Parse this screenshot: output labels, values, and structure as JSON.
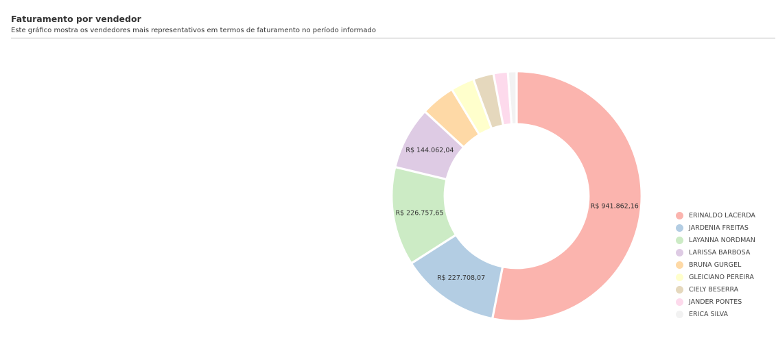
{
  "header": {
    "title": "Faturamento por vendedor",
    "subtitle": "Este gráfico mostra os vendedores mais representativos em termos de faturamento no período informado"
  },
  "chart_data": {
    "type": "pie",
    "style": "donut",
    "title": "Faturamento por vendedor",
    "subtitle": "Este gráfico mostra os vendedores mais representativos em termos de faturamento no período informado",
    "legend_position": "right",
    "categories": [
      "ERINALDO LACERDA",
      "JARDENIA FREITAS",
      "LAYANNA NORDMAN",
      "LARISSA BARBOSA",
      "BRUNA GURGEL",
      "GLEICIANO PEREIRA",
      "CIELY BESERRA",
      "JANDER PONTES",
      "ERICA SILVA"
    ],
    "values": [
      941862.16,
      227708.07,
      226757.65,
      144062.04,
      79000,
      54000,
      47000,
      33000,
      20000
    ],
    "data_labels": [
      "R$ 941.862,16",
      "R$ 227.708,07",
      "R$ 226.757,65",
      "R$ 144.062,04",
      "",
      "",
      "",
      "",
      ""
    ],
    "colors": [
      "#fbb4ae",
      "#b3cde3",
      "#ccebc5",
      "#decbe4",
      "#fed9a6",
      "#ffffcc",
      "#e5d8bd",
      "#fddaec",
      "#f2f2f2"
    ]
  }
}
